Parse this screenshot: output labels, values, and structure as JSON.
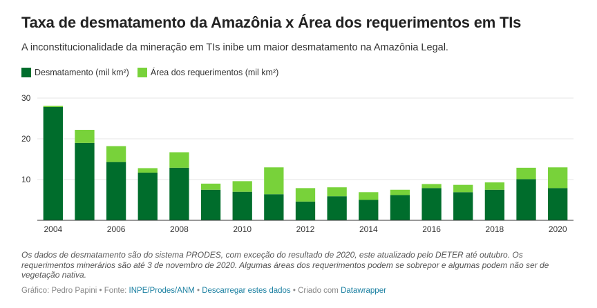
{
  "colors": {
    "deforestation": "#006d2c",
    "requests": "#78d23a",
    "grid": "#e5e5e5",
    "axis_text": "#333333",
    "link": "#1d81a2"
  },
  "header": {
    "title": "Taxa de desmatamento da Amazônia x Área dos requerimentos em TIs",
    "subtitle": "A inconstitucionalidade da mineração em TIs inibe um maior desmatamento na Amazônia Legal."
  },
  "notes": "Os dados de desmatamento são do sistema PRODES, com exceção do resultado de 2020, este atualizado pelo DETER até outubro. Os requerimentos minerários são até 3 de novembro de 2020. Algumas áreas dos requerimentos podem se sobrepor e algumas podem não ser de vegetação nativa.",
  "footer": {
    "credit": "Gráfico: Pedro Papini",
    "sep1": " • Fonte: ",
    "source_link": "INPE/Prodes/ANM",
    "sep2": " • ",
    "download_link": "Descarregar estes dados",
    "sep3": " • Criado com ",
    "tool_link": "Datawrapper"
  },
  "chart_data": {
    "type": "bar",
    "stacked": true,
    "categories": [
      "2004",
      "2005",
      "2006",
      "2007",
      "2008",
      "2009",
      "2010",
      "2011",
      "2012",
      "2013",
      "2014",
      "2015",
      "2016",
      "2017",
      "2018",
      "2019",
      "2020"
    ],
    "series": [
      {
        "name": "Desmatamento (mil km²)",
        "color": "#006d2c",
        "values": [
          27.8,
          19.0,
          14.3,
          11.7,
          12.9,
          7.5,
          7.0,
          6.4,
          4.6,
          5.9,
          5.0,
          6.2,
          7.9,
          6.9,
          7.5,
          10.1,
          7.9
        ]
      },
      {
        "name": "Área dos requerimentos (mil km²)",
        "color": "#78d23a",
        "values": [
          0.3,
          3.2,
          3.9,
          1.1,
          3.8,
          1.5,
          2.6,
          6.6,
          3.3,
          2.2,
          1.9,
          1.3,
          1.0,
          1.8,
          1.8,
          2.8,
          5.1
        ]
      }
    ],
    "ylim": [
      0,
      30
    ],
    "yticks": [
      10,
      20,
      30
    ],
    "xtick_labels": [
      "2004",
      "2006",
      "2008",
      "2010",
      "2012",
      "2014",
      "2016",
      "2018",
      "2020"
    ],
    "grid": true,
    "legend_position": "top-left"
  }
}
